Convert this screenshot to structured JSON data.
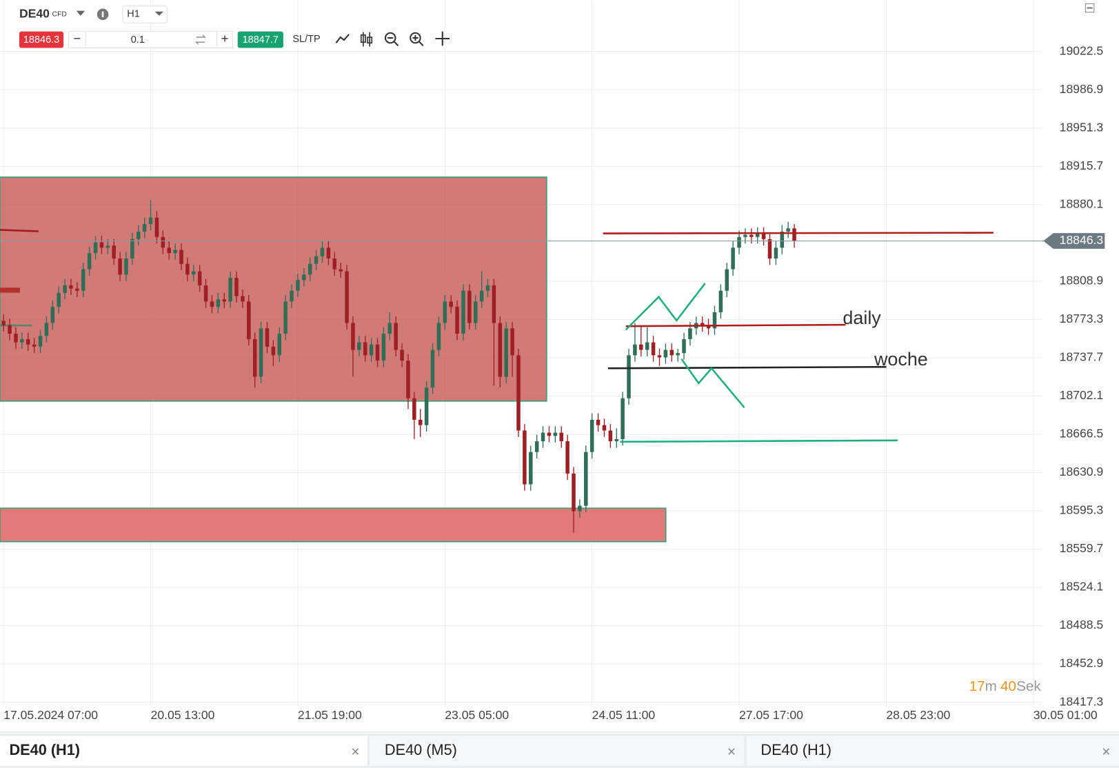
{
  "header": {
    "symbol": "DE40",
    "instrument": "CFD",
    "timeframe": "H1"
  },
  "toolbar": {
    "bid": "18846.3",
    "volume": "0.1",
    "ask": "18847.7",
    "sltp": "SL/TP"
  },
  "timer": {
    "minutes": "17",
    "min_unit": "m",
    "seconds": "40",
    "sec_unit": "Sek"
  },
  "tabs": [
    "DE40 (H1)",
    "DE40 (M5)",
    "DE40 (H1)"
  ],
  "chart_data": {
    "type": "candlestick",
    "up_color": "#2f6e57",
    "down_color": "#9e1f24",
    "current_price": 18846.3,
    "xlim": [
      0,
      168
    ],
    "ylim": [
      18413.3,
      19070.3
    ],
    "xticks": [
      {
        "value": 0,
        "label": "17.05.2024 07:00"
      },
      {
        "value": 24,
        "label": "20.05 13:00"
      },
      {
        "value": 48,
        "label": "21.05 19:00"
      },
      {
        "value": 72,
        "label": "23.05 05:00"
      },
      {
        "value": 96,
        "label": "24.05 11:00"
      },
      {
        "value": 120,
        "label": "27.05 17:00"
      },
      {
        "value": 144,
        "label": "28.05 23:00"
      },
      {
        "value": 168,
        "label": "30.05 01:00"
      }
    ],
    "yticks": [
      19022.5,
      18986.9,
      18951.3,
      18915.7,
      18880.1,
      18808.9,
      18773.3,
      18737.7,
      18702.1,
      18666.5,
      18630.9,
      18595.3,
      18559.7,
      18524.1,
      18488.5,
      18452.9,
      18417.3
    ],
    "grid": true,
    "annotations": [
      "daily",
      "woche"
    ],
    "candles": [
      [
        18772,
        18778,
        18762,
        18768
      ],
      [
        18768,
        18774,
        18754,
        18760
      ],
      [
        18760,
        18766,
        18746,
        18752
      ],
      [
        18752,
        18761,
        18746,
        18755
      ],
      [
        18755,
        18761,
        18744,
        18750
      ],
      [
        18750,
        18756,
        18742,
        18748
      ],
      [
        18748,
        18764,
        18742,
        18758
      ],
      [
        18758,
        18776,
        18752,
        18770
      ],
      [
        18770,
        18791,
        18764,
        18785
      ],
      [
        18785,
        18804,
        18779,
        18798
      ],
      [
        18798,
        18811,
        18792,
        18805
      ],
      [
        18805,
        18811,
        18796,
        18802
      ],
      [
        18802,
        18808,
        18794,
        18800
      ],
      [
        18800,
        18826,
        18794,
        18820
      ],
      [
        18820,
        18841,
        18814,
        18835
      ],
      [
        18835,
        18851,
        18829,
        18845
      ],
      [
        18845,
        18851,
        18834,
        18840
      ],
      [
        18840,
        18848,
        18834,
        18842
      ],
      [
        18842,
        18848,
        18824,
        18830
      ],
      [
        18830,
        18836,
        18809,
        18815
      ],
      [
        18815,
        18836,
        18809,
        18830
      ],
      [
        18830,
        18854,
        18824,
        18848
      ],
      [
        18848,
        18861,
        18842,
        18855
      ],
      [
        18855,
        18868,
        18849,
        18862
      ],
      [
        18862,
        18884,
        18856,
        18868
      ],
      [
        18868,
        18874,
        18844,
        18850
      ],
      [
        18850,
        18856,
        18834,
        18840
      ],
      [
        18840,
        18846,
        18829,
        18835
      ],
      [
        18835,
        18844,
        18829,
        18838
      ],
      [
        18838,
        18844,
        18819,
        18825
      ],
      [
        18825,
        18831,
        18809,
        18815
      ],
      [
        18815,
        18824,
        18809,
        18818
      ],
      [
        18818,
        18824,
        18799,
        18805
      ],
      [
        18805,
        18811,
        18784,
        18790
      ],
      [
        18790,
        18796,
        18779,
        18785
      ],
      [
        18785,
        18798,
        18779,
        18792
      ],
      [
        18792,
        18798,
        18784,
        18790
      ],
      [
        18790,
        18818,
        18784,
        18812
      ],
      [
        18812,
        18818,
        18789,
        18795
      ],
      [
        18795,
        18801,
        18784,
        18790
      ],
      [
        18790,
        18796,
        18749,
        18755
      ],
      [
        18755,
        18761,
        18710,
        18720
      ],
      [
        18720,
        18771,
        18714,
        18765
      ],
      [
        18765,
        18771,
        18742,
        18748
      ],
      [
        18748,
        18754,
        18730,
        18740
      ],
      [
        18740,
        18766,
        18734,
        18760
      ],
      [
        18760,
        18796,
        18754,
        18790
      ],
      [
        18790,
        18806,
        18784,
        18800
      ],
      [
        18800,
        18816,
        18794,
        18810
      ],
      [
        18810,
        18821,
        18804,
        18815
      ],
      [
        18815,
        18831,
        18809,
        18825
      ],
      [
        18825,
        18838,
        18819,
        18832
      ],
      [
        18832,
        18846,
        18826,
        18840
      ],
      [
        18840,
        18846,
        18824,
        18830
      ],
      [
        18830,
        18836,
        18814,
        18820
      ],
      [
        18820,
        18826,
        18812,
        18818
      ],
      [
        18818,
        18824,
        18764,
        18770
      ],
      [
        18770,
        18776,
        18720,
        18745
      ],
      [
        18745,
        18758,
        18739,
        18752
      ],
      [
        18752,
        18758,
        18734,
        18740
      ],
      [
        18740,
        18756,
        18734,
        18750
      ],
      [
        18750,
        18756,
        18729,
        18735
      ],
      [
        18735,
        18766,
        18729,
        18760
      ],
      [
        18760,
        18780,
        18754,
        18770
      ],
      [
        18770,
        18776,
        18739,
        18745
      ],
      [
        18745,
        18751,
        18729,
        18735
      ],
      [
        18735,
        18741,
        18690,
        18700
      ],
      [
        18700,
        18706,
        18662,
        18680
      ],
      [
        18680,
        18690,
        18664,
        18675
      ],
      [
        18675,
        18716,
        18669,
        18710
      ],
      [
        18710,
        18751,
        18704,
        18745
      ],
      [
        18745,
        18776,
        18739,
        18770
      ],
      [
        18770,
        18796,
        18764,
        18790
      ],
      [
        18790,
        18796,
        18779,
        18785
      ],
      [
        18785,
        18791,
        18754,
        18760
      ],
      [
        18760,
        18806,
        18754,
        18800
      ],
      [
        18800,
        18806,
        18764,
        18770
      ],
      [
        18770,
        18796,
        18764,
        18790
      ],
      [
        18790,
        18818,
        18784,
        18800
      ],
      [
        18800,
        18811,
        18794,
        18805
      ],
      [
        18805,
        18811,
        18712,
        18770
      ],
      [
        18770,
        18776,
        18710,
        18720
      ],
      [
        18720,
        18771,
        18714,
        18765
      ],
      [
        18765,
        18771,
        18720,
        18740
      ],
      [
        18740,
        18746,
        18664,
        18670
      ],
      [
        18670,
        18676,
        18614,
        18620
      ],
      [
        18620,
        18656,
        18614,
        18650
      ],
      [
        18650,
        18666,
        18644,
        18660
      ],
      [
        18660,
        18674,
        18654,
        18668
      ],
      [
        18668,
        18674,
        18659,
        18665
      ],
      [
        18665,
        18674,
        18659,
        18668
      ],
      [
        18668,
        18674,
        18654,
        18660
      ],
      [
        18660,
        18666,
        18624,
        18630
      ],
      [
        18630,
        18636,
        18575,
        18595
      ],
      [
        18595,
        18606,
        18589,
        18600
      ],
      [
        18600,
        18656,
        18594,
        18650
      ],
      [
        18650,
        18686,
        18644,
        18680
      ],
      [
        18680,
        18686,
        18669,
        18675
      ],
      [
        18675,
        18681,
        18664,
        18670
      ],
      [
        18670,
        18676,
        18654,
        18660
      ],
      [
        18660,
        18672,
        18654,
        18662
      ],
      [
        18662,
        18706,
        18656,
        18700
      ],
      [
        18700,
        18746,
        18694,
        18740
      ],
      [
        18740,
        18770,
        18734,
        18750
      ],
      [
        18750,
        18768,
        18739,
        18745
      ],
      [
        18745,
        18766,
        18739,
        18752
      ],
      [
        18752,
        18758,
        18734,
        18740
      ],
      [
        18740,
        18746,
        18730,
        18738
      ],
      [
        18738,
        18751,
        18732,
        18745
      ],
      [
        18745,
        18751,
        18734,
        18740
      ],
      [
        18740,
        18746,
        18734,
        18742
      ],
      [
        18742,
        18761,
        18736,
        18755
      ],
      [
        18755,
        18771,
        18749,
        18765
      ],
      [
        18765,
        18776,
        18759,
        18770
      ],
      [
        18770,
        18776,
        18762,
        18768
      ],
      [
        18768,
        18774,
        18759,
        18765
      ],
      [
        18765,
        18786,
        18759,
        18780
      ],
      [
        18780,
        18806,
        18774,
        18800
      ],
      [
        18800,
        18826,
        18794,
        18820
      ],
      [
        18820,
        18846,
        18814,
        18840
      ],
      [
        18840,
        18856,
        18834,
        18850
      ],
      [
        18850,
        18858,
        18844,
        18852
      ],
      [
        18852,
        18858,
        18844,
        18850
      ],
      [
        18850,
        18859,
        18844,
        18853
      ],
      [
        18853,
        18859,
        18842,
        18848
      ],
      [
        18848,
        18854,
        18824,
        18830
      ],
      [
        18830,
        18846,
        18824,
        18840
      ],
      [
        18840,
        18861,
        18834,
        18855
      ],
      [
        18855,
        18864,
        18849,
        18858
      ],
      [
        18858,
        18862,
        18840,
        18846
      ]
    ]
  }
}
